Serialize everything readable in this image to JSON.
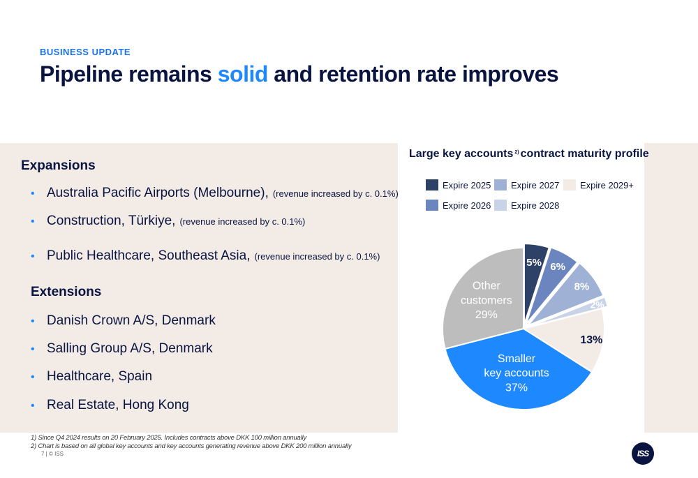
{
  "header": {
    "kicker": "BUSINESS UPDATE",
    "title_pre": "Pipeline remains ",
    "title_accent": "solid",
    "title_post": " and retention rate improves"
  },
  "expansions": {
    "heading": "Expansions",
    "items": [
      {
        "text": "Australia Pacific Airports (Melbourne),",
        "note": "(revenue increased by c. 0.1%)"
      },
      {
        "text": "Construction, Türkiye,",
        "note": "(revenue increased by c. 0.1%)"
      },
      {
        "text": "Public Healthcare, Southeast Asia,",
        "note": "(revenue increased by c. 0.1%)"
      }
    ]
  },
  "extensions": {
    "heading": "Extensions",
    "items": [
      {
        "text": "Danish Crown A/S, Denmark"
      },
      {
        "text": "Salling Group A/S, Denmark"
      },
      {
        "text": "Healthcare, Spain"
      },
      {
        "text": "Real Estate, Hong Kong"
      }
    ]
  },
  "chart_data": {
    "type": "pie",
    "title": "Large key accounts",
    "title_sup": "2)",
    "title_post": "contract maturity profile",
    "legend": [
      "Expire 2025",
      "Expire 2027",
      "Expire 2029+",
      "Expire 2026",
      "Expire 2028"
    ],
    "slices": [
      {
        "label": "Expire 2025",
        "value": 5,
        "color": "#2e4166",
        "data_label": "5%"
      },
      {
        "label": "Expire 2026",
        "value": 6,
        "color": "#6b86bf",
        "data_label": "6%"
      },
      {
        "label": "Expire 2027",
        "value": 8,
        "color": "#9fb2d6",
        "data_label": "8%"
      },
      {
        "label": "Expire 2028",
        "value": 2,
        "color": "#c9d3e8",
        "data_label": "2%"
      },
      {
        "label": "Expire 2029+",
        "value": 13,
        "color": "#f2ebe6",
        "data_label": "13%"
      },
      {
        "label": "Smaller key accounts",
        "value": 37,
        "color": "#1e88ff",
        "data_label": "Smaller\nkey accounts\n37%"
      },
      {
        "label": "Other customers",
        "value": 29,
        "color": "#bdbdbd",
        "data_label": "Other\ncustomers\n29%"
      }
    ]
  },
  "footnotes": [
    "1) Since Q4 2024 results on 20 February 2025. Includes contracts above DKK 100 million annually",
    "2) Chart is based on all global key accounts and key accounts generating revenue above DKK 200 million annually"
  ],
  "footer": {
    "page": "7 | © ISS",
    "logo_text": "ISS"
  }
}
